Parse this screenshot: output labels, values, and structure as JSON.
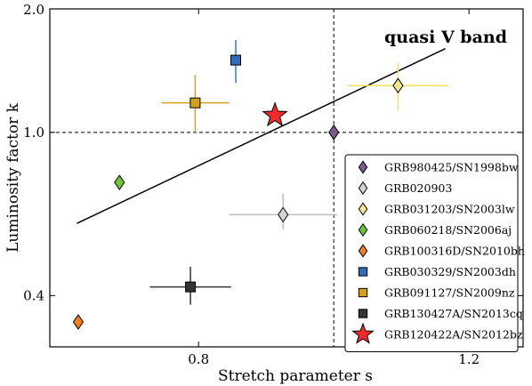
{
  "chart_data": {
    "type": "scatter",
    "xlabel": "Stretch parameter s",
    "ylabel": "Luminosity factor k",
    "annotation": "quasi V band",
    "xlim": [
      0.58,
      1.28
    ],
    "ylim": [
      0.3,
      2.0
    ],
    "y_scale": "log",
    "x_ticks": [
      {
        "value": 0.8,
        "label": "0.8"
      },
      {
        "value": 1.2,
        "label": "1.2"
      }
    ],
    "y_ticks": [
      {
        "value": 0.4,
        "label": "0.4"
      },
      {
        "value": 1.0,
        "label": "1.0"
      },
      {
        "value": 2.0,
        "label": "2.0"
      }
    ],
    "reference_lines": {
      "x": 1.0,
      "y": 1.0,
      "style": "dashed"
    },
    "fit_line": {
      "x": [
        0.62,
        1.165
      ],
      "y": [
        0.6,
        1.6
      ]
    },
    "legend_position": "lower-right",
    "series": [
      {
        "name": "GRB980425/SN1998bw",
        "marker": "diamond",
        "color": "#7b5a8c",
        "x": 1.0,
        "y": 1.0,
        "xerr": 0,
        "yerr_lo": 0,
        "yerr_hi": 0
      },
      {
        "name": "GRB020903",
        "marker": "diamond",
        "color": "#d4d4d4",
        "err_color": "#bfbfbf",
        "x": 0.925,
        "y": 0.63,
        "xerr": 0.08,
        "yerr_lo": 0.05,
        "yerr_hi": 0.08
      },
      {
        "name": "GRB031203/SN2003lw",
        "marker": "diamond",
        "color": "#f7e690",
        "err_color": "#f3e25a",
        "x": 1.095,
        "y": 1.3,
        "xerr": 0.075,
        "yerr_lo": 0.17,
        "yerr_hi": 0.18
      },
      {
        "name": "GRB060218/SN2006aj",
        "marker": "diamond",
        "color": "#6ec43a",
        "x": 0.683,
        "y": 0.755,
        "xerr": 0,
        "yerr_lo": 0,
        "yerr_hi": 0
      },
      {
        "name": "GRB100316D/SN2010bh",
        "marker": "diamond",
        "color": "#ef7f22",
        "x": 0.622,
        "y": 0.345,
        "xerr": 0,
        "yerr_lo": 0,
        "yerr_hi": 0
      },
      {
        "name": "GRB030329/SN2003dh",
        "marker": "square",
        "color": "#2f6db8",
        "err_color": "#3a78c6",
        "x": 0.855,
        "y": 1.5,
        "xerr": 0,
        "yerr_lo": 0.18,
        "yerr_hi": 0.18
      },
      {
        "name": "GRB091127/SN2009nz",
        "marker": "square",
        "color": "#d4a017",
        "err_color": "#d4a017",
        "x": 0.795,
        "y": 1.18,
        "xerr": 0.05,
        "yerr_lo": 0.18,
        "yerr_hi": 0.2
      },
      {
        "name": "GRB130427A/SN2013cq",
        "marker": "square",
        "color": "#333333",
        "err_color": "#333333",
        "x": 0.788,
        "y": 0.42,
        "xerr": 0.06,
        "yerr_lo": 0.04,
        "yerr_hi": 0.05
      },
      {
        "name": "GRB120422A/SN2012bz",
        "marker": "star",
        "color": "#ee2a2a",
        "x": 0.913,
        "y": 1.1,
        "xerr": 0,
        "yerr_lo": 0,
        "yerr_hi": 0
      }
    ]
  }
}
